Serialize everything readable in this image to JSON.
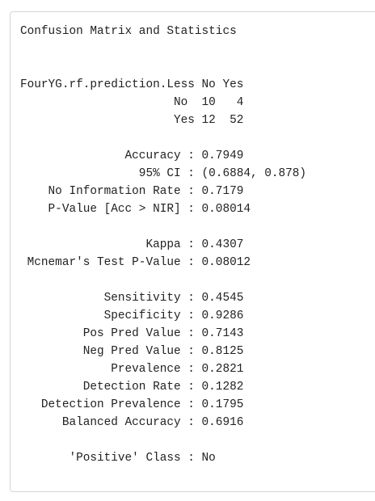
{
  "output": {
    "lines": [
      "Confusion Matrix and Statistics",
      "",
      "",
      "FourYG.rf.prediction.Less No Yes",
      "                      No  10   4",
      "                      Yes 12  52",
      "",
      "               Accuracy : 0.7949",
      "                 95% CI : (0.6884, 0.878)",
      "    No Information Rate : 0.7179",
      "    P-Value [Acc > NIR] : 0.08014",
      "",
      "                  Kappa : 0.4307",
      " Mcnemar's Test P-Value : 0.08012",
      "",
      "            Sensitivity : 0.4545",
      "            Specificity : 0.9286",
      "         Pos Pred Value : 0.7143",
      "         Neg Pred Value : 0.8125",
      "             Prevalence : 0.2821",
      "         Detection Rate : 0.1282",
      "   Detection Prevalence : 0.1795",
      "      Balanced Accuracy : 0.6916",
      "",
      "       'Positive' Class : No"
    ]
  }
}
